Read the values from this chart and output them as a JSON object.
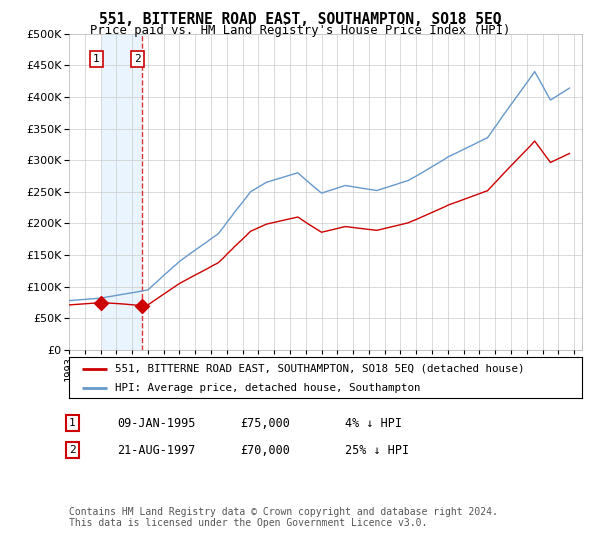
{
  "title": "551, BITTERNE ROAD EAST, SOUTHAMPTON, SO18 5EQ",
  "subtitle": "Price paid vs. HM Land Registry's House Price Index (HPI)",
  "legend_line1": "551, BITTERNE ROAD EAST, SOUTHAMPTON, SO18 5EQ (detached house)",
  "legend_line2": "HPI: Average price, detached house, Southampton",
  "annotation1_date": "09-JAN-1995",
  "annotation1_price": "£75,000",
  "annotation1_hpi": "4% ↓ HPI",
  "annotation2_date": "21-AUG-1997",
  "annotation2_price": "£70,000",
  "annotation2_hpi": "25% ↓ HPI",
  "footnote": "Contains HM Land Registry data © Crown copyright and database right 2024.\nThis data is licensed under the Open Government Licence v3.0.",
  "sale1_year": 1995.03,
  "sale1_value": 75000,
  "sale2_year": 1997.64,
  "sale2_value": 70000,
  "hpi_color": "#6699cc",
  "property_color": "#cc0000",
  "ylim_min": 0,
  "ylim_max": 500000,
  "xlim_min": 1993.0,
  "xlim_max": 2025.5,
  "background_color": "#ffffff",
  "grid_color": "#cccccc"
}
